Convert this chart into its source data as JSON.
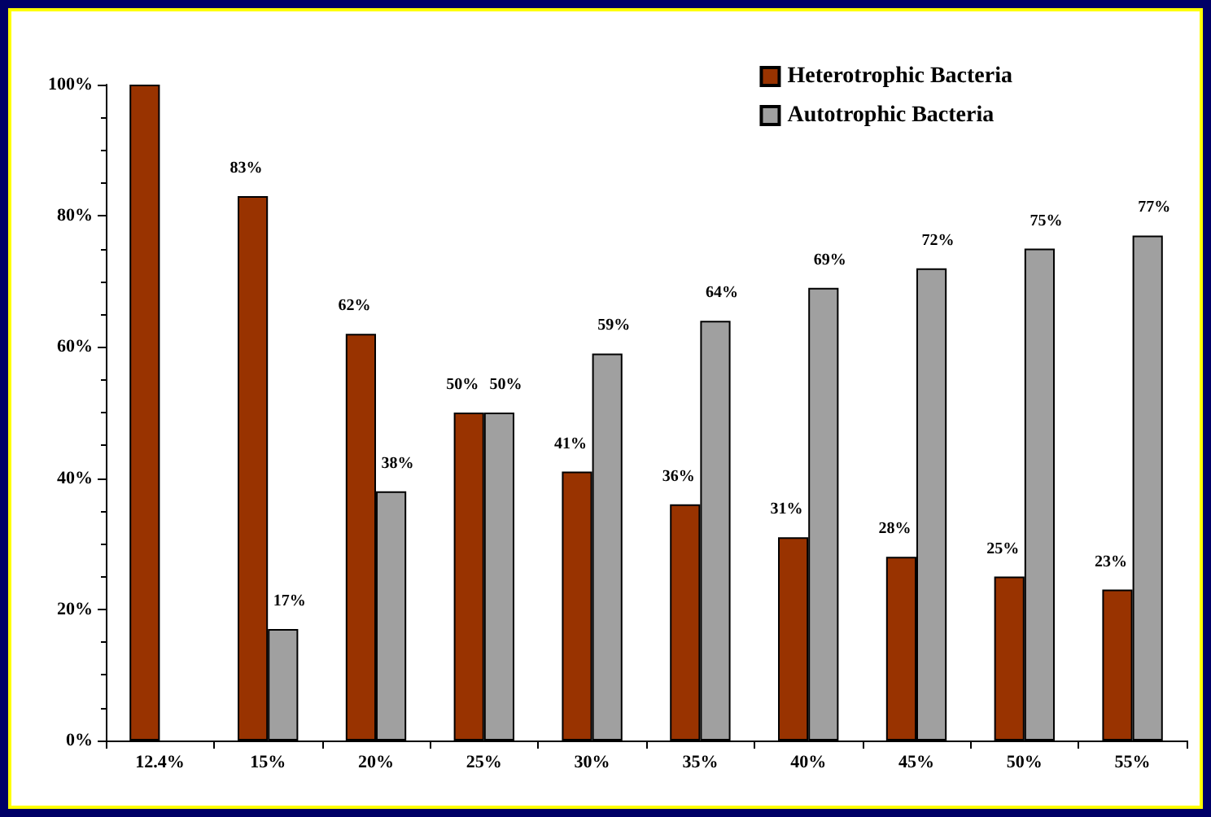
{
  "chart_data": {
    "type": "bar",
    "categories": [
      "12.4%",
      "15%",
      "20%",
      "25%",
      "30%",
      "35%",
      "40%",
      "45%",
      "50%",
      "55%"
    ],
    "series": [
      {
        "name": "Heterotrophic Bacteria",
        "color": "#993300",
        "values": [
          100,
          83,
          62,
          50,
          41,
          36,
          31,
          28,
          25,
          23
        ],
        "value_labels": [
          null,
          "83%",
          "62%",
          "50%",
          "41%",
          "36%",
          "31%",
          "28%",
          "25%",
          "23%"
        ]
      },
      {
        "name": "Autotrophic Bacteria",
        "color": "#a0a0a0",
        "values": [
          null,
          17,
          38,
          50,
          59,
          64,
          69,
          72,
          75,
          77
        ],
        "value_labels": [
          null,
          "17%",
          "38%",
          "50%",
          "59%",
          "64%",
          "69%",
          "72%",
          "75%",
          "77%"
        ]
      }
    ],
    "ylim": [
      0,
      100
    ],
    "yticks": [
      {
        "value": 0,
        "label": "0%"
      },
      {
        "value": 20,
        "label": "20%"
      },
      {
        "value": 40,
        "label": "40%"
      },
      {
        "value": 60,
        "label": "60%"
      },
      {
        "value": 80,
        "label": "80%"
      },
      {
        "value": 100,
        "label": "100%"
      }
    ],
    "grid": false,
    "legend": "top right"
  }
}
